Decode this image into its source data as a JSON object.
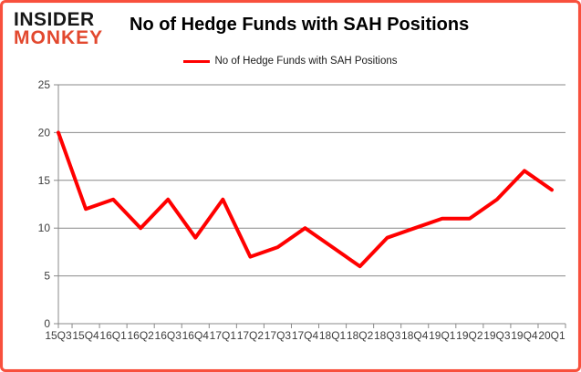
{
  "logo": {
    "line1": "INSIDER",
    "line2": "MONKEY"
  },
  "header": {
    "title": "No of Hedge Funds with SAH Positions"
  },
  "legend": {
    "label": "No of Hedge Funds with SAH Positions"
  },
  "colors": {
    "line": "#FF0000",
    "grid": "#898989",
    "tick_label": "#3d3d3d",
    "logo_red": "#E2482E",
    "frame_border": "#F8503D"
  },
  "chart_data": {
    "type": "line",
    "title": "No of Hedge Funds with SAH Positions",
    "legend_entries": [
      "No of Hedge Funds with SAH Positions"
    ],
    "legend_position": "top",
    "grid": true,
    "categories": [
      "15Q3",
      "15Q4",
      "16Q1",
      "16Q2",
      "16Q3",
      "16Q4",
      "17Q1",
      "17Q2",
      "17Q3",
      "17Q4",
      "18Q1",
      "18Q2",
      "18Q3",
      "18Q4",
      "19Q1",
      "19Q2",
      "19Q3",
      "19Q4",
      "20Q1"
    ],
    "values": [
      20,
      12,
      13,
      10,
      13,
      9,
      13,
      7,
      8,
      10,
      8,
      6,
      9,
      10,
      11,
      11,
      13,
      16,
      14
    ],
    "xlabel": "",
    "ylabel": "",
    "yticks": [
      0,
      5,
      10,
      15,
      20,
      25
    ],
    "ylim": [
      0,
      25
    ]
  }
}
